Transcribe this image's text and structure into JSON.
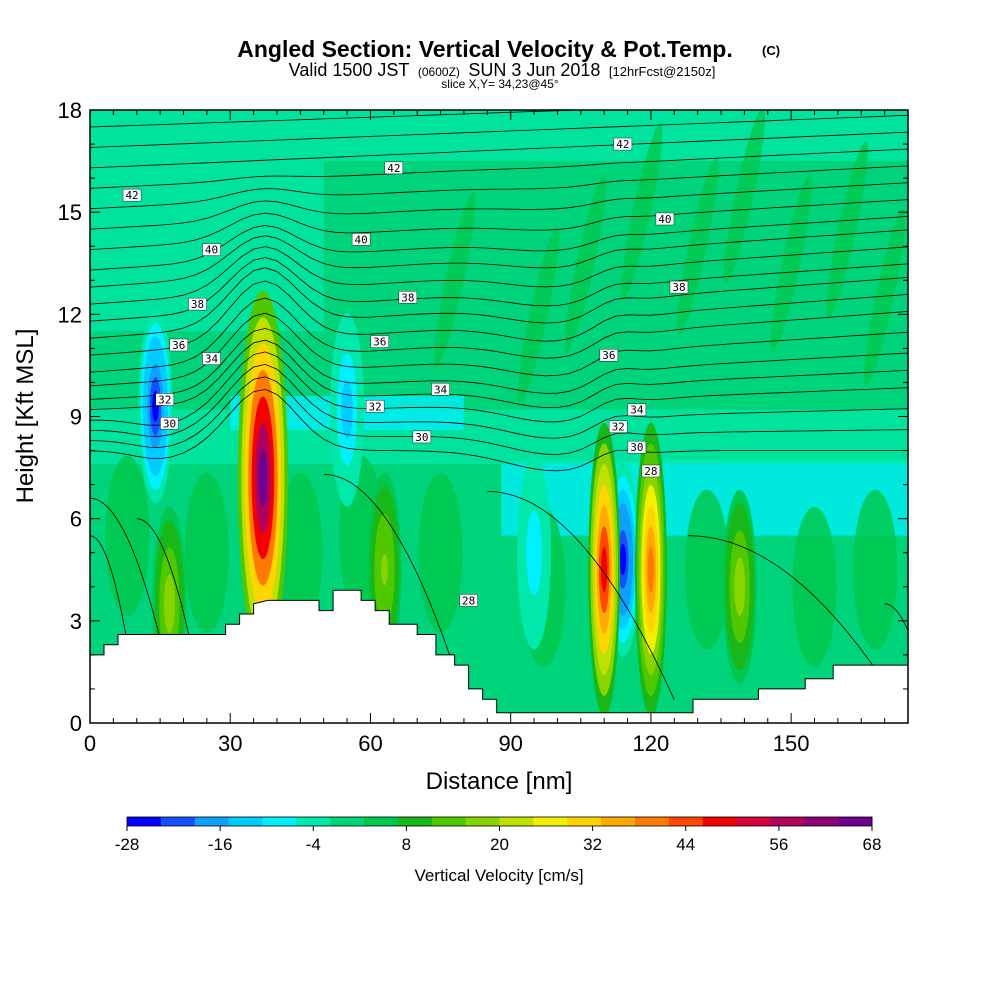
{
  "title": {
    "main": "Angled Section: Vertical Velocity & Pot.Temp.",
    "main_suffix": "(C)",
    "valid_prefix": "Valid 1500 JST",
    "valid_utc": "(0600Z)",
    "valid_date": "SUN 3 Jun 2018",
    "valid_run": "[12hrFcst@2150z]",
    "slice": "slice X,Y= 34,23@45°"
  },
  "chart_data": {
    "type": "heatmap",
    "xlabel": "Distance [nm]",
    "ylabel": "Height [Kft MSL]",
    "xlim": [
      0,
      175
    ],
    "ylim": [
      0,
      18
    ],
    "xticks": [
      0,
      30,
      60,
      90,
      120,
      150
    ],
    "yticks": [
      0,
      3,
      6,
      9,
      12,
      15,
      18
    ],
    "grid": false,
    "colorbar": {
      "label": "Vertical Velocity [cm/s]",
      "tick_labels": [
        "-28",
        "-16",
        "-4",
        "8",
        "20",
        "32",
        "44",
        "56",
        "68"
      ],
      "colors": [
        "#0000ff",
        "#1450ff",
        "#0fa0ff",
        "#00ccff",
        "#00f0ff",
        "#00e8aa",
        "#00d47a",
        "#00c84e",
        "#18b818",
        "#50c800",
        "#88d400",
        "#c0e000",
        "#f0f000",
        "#ffd400",
        "#ffaa00",
        "#ff7a00",
        "#ff4800",
        "#f40000",
        "#d8003a",
        "#b0005e",
        "#8a0078",
        "#6e0090"
      ]
    },
    "updrafts": [
      {
        "x": 37,
        "y": 7.2,
        "peak": 68
      },
      {
        "x": 110,
        "y": 4.5,
        "peak": 50
      },
      {
        "x": 120,
        "y": 4.5,
        "peak": 40
      },
      {
        "x": 17,
        "y": 3.5,
        "peak": 18
      },
      {
        "x": 63,
        "y": 4.5,
        "peak": 16
      },
      {
        "x": 139,
        "y": 4.0,
        "peak": 18
      }
    ],
    "downdrafts": [
      {
        "x": 14,
        "y": 9.3,
        "peak": -26
      },
      {
        "x": 114,
        "y": 4.8,
        "peak": -28
      },
      {
        "x": 55,
        "y": 9.2,
        "peak": -14
      },
      {
        "x": 95,
        "y": 5.0,
        "peak": -10
      }
    ],
    "theta_contours": [
      {
        "value": 28,
        "label": "28",
        "label_pos": [
          81,
          3.6
        ]
      },
      {
        "value": 30,
        "label": "30",
        "label_pos": [
          17,
          8.8
        ]
      },
      {
        "value": 30,
        "label": "30",
        "label_pos": [
          71,
          8.4
        ]
      },
      {
        "value": 30,
        "label": "30",
        "label_pos": [
          117,
          8.1
        ]
      },
      {
        "value": 28,
        "label": "28",
        "label_pos": [
          120,
          7.4
        ]
      },
      {
        "value": 32,
        "label": "32",
        "label_pos": [
          16,
          9.5
        ]
      },
      {
        "value": 32,
        "label": "32",
        "label_pos": [
          61,
          9.3
        ]
      },
      {
        "value": 32,
        "label": "32",
        "label_pos": [
          113,
          8.7
        ]
      },
      {
        "value": 34,
        "label": "34",
        "label_pos": [
          26,
          10.7
        ]
      },
      {
        "value": 34,
        "label": "34",
        "label_pos": [
          75,
          9.8
        ]
      },
      {
        "value": 34,
        "label": "34",
        "label_pos": [
          117,
          9.2
        ]
      },
      {
        "value": 36,
        "label": "36",
        "label_pos": [
          19,
          11.1
        ]
      },
      {
        "value": 36,
        "label": "36",
        "label_pos": [
          62,
          11.2
        ]
      },
      {
        "value": 36,
        "label": "36",
        "label_pos": [
          111,
          10.8
        ]
      },
      {
        "value": 38,
        "label": "38",
        "label_pos": [
          23,
          12.3
        ]
      },
      {
        "value": 38,
        "label": "38",
        "label_pos": [
          68,
          12.5
        ]
      },
      {
        "value": 38,
        "label": "38",
        "label_pos": [
          126,
          12.8
        ]
      },
      {
        "value": 40,
        "label": "40",
        "label_pos": [
          26,
          13.9
        ]
      },
      {
        "value": 40,
        "label": "40",
        "label_pos": [
          58,
          14.2
        ]
      },
      {
        "value": 40,
        "label": "40",
        "label_pos": [
          123,
          14.8
        ]
      },
      {
        "value": 42,
        "label": "42",
        "label_pos": [
          9,
          15.5
        ]
      },
      {
        "value": 42,
        "label": "42",
        "label_pos": [
          65,
          16.3
        ]
      },
      {
        "value": 42,
        "label": "42",
        "label_pos": [
          114,
          17.0
        ]
      }
    ],
    "terrain": [
      [
        0,
        2.0
      ],
      [
        3,
        2.0
      ],
      [
        3,
        2.3
      ],
      [
        6,
        2.3
      ],
      [
        6,
        2.6
      ],
      [
        29,
        2.6
      ],
      [
        29,
        2.9
      ],
      [
        32,
        2.9
      ],
      [
        32,
        3.2
      ],
      [
        35,
        3.2
      ],
      [
        35,
        3.5
      ],
      [
        38,
        3.6
      ],
      [
        49,
        3.6
      ],
      [
        49,
        3.3
      ],
      [
        52,
        3.3
      ],
      [
        52,
        3.9
      ],
      [
        58,
        3.9
      ],
      [
        58,
        3.6
      ],
      [
        61,
        3.6
      ],
      [
        61,
        3.3
      ],
      [
        64,
        3.3
      ],
      [
        64,
        2.9
      ],
      [
        70,
        2.9
      ],
      [
        70,
        2.6
      ],
      [
        74,
        2.6
      ],
      [
        74,
        2.0
      ],
      [
        78,
        2.0
      ],
      [
        78,
        1.7
      ],
      [
        81,
        1.7
      ],
      [
        81,
        1.0
      ],
      [
        84,
        1.0
      ],
      [
        84,
        0.7
      ],
      [
        87,
        0.7
      ],
      [
        87,
        0.3
      ],
      [
        129,
        0.3
      ],
      [
        129,
        0.7
      ],
      [
        143,
        0.7
      ],
      [
        143,
        1.0
      ],
      [
        153,
        1.0
      ],
      [
        153,
        1.3
      ],
      [
        159,
        1.3
      ],
      [
        159,
        1.7
      ],
      [
        175,
        1.7
      ],
      [
        175,
        0
      ],
      [
        0,
        0
      ]
    ]
  }
}
